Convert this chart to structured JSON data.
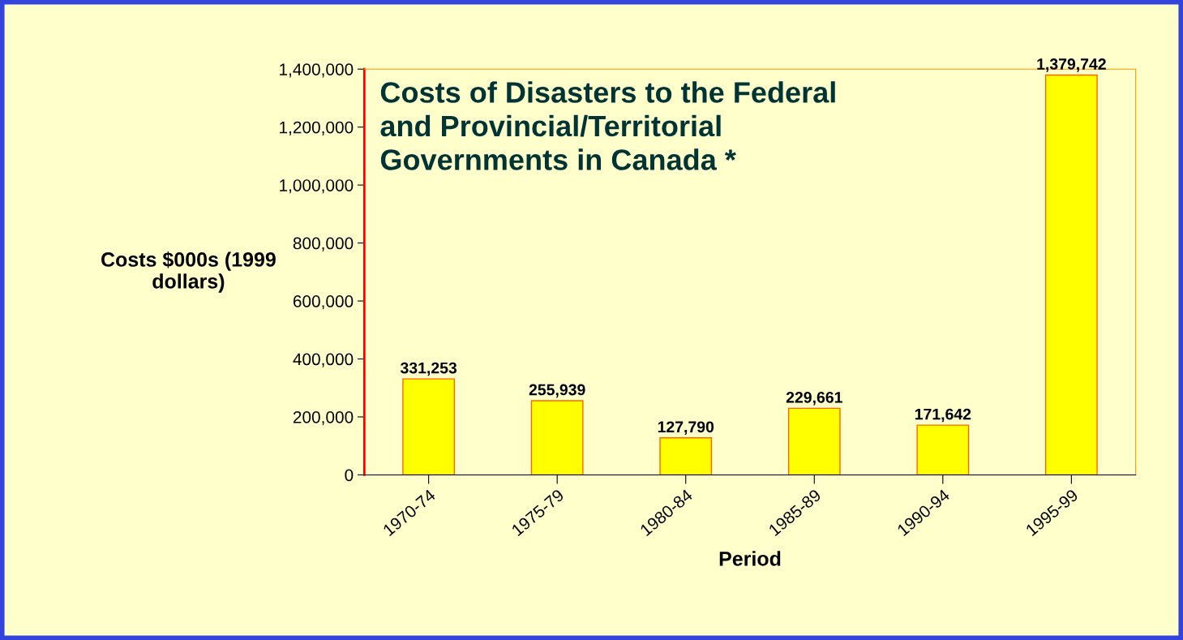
{
  "chart_data": {
    "type": "bar",
    "title": "Costs of Disasters to the Federal and Provincial/Territorial Governments in Canada *",
    "xlabel": "Period",
    "ylabel": "Costs $000s (1999 dollars)",
    "categories": [
      "1970-74",
      "1975-79",
      "1980-84",
      "1985-89",
      "1990-94",
      "1995-99"
    ],
    "values": [
      331253,
      255939,
      127790,
      229661,
      171642,
      1379742
    ],
    "value_labels": [
      "331,253",
      "255,939",
      "127,790",
      "229,661",
      "171,642",
      "1,379,742"
    ],
    "color": "#ffff00",
    "ylim": [
      0,
      1400000
    ],
    "yticks": [
      {
        "value": 0,
        "label": "0"
      },
      {
        "value": 200000,
        "label": "200,000"
      },
      {
        "value": 400000,
        "label": "400,000"
      },
      {
        "value": 600000,
        "label": "600,000"
      },
      {
        "value": 800000,
        "label": "800,000"
      },
      {
        "value": 1000000,
        "label": "1,000,000"
      },
      {
        "value": 1200000,
        "label": "1,200,000"
      },
      {
        "value": 1400000,
        "label": "1,400,000"
      }
    ],
    "grid": false,
    "legend": false
  }
}
